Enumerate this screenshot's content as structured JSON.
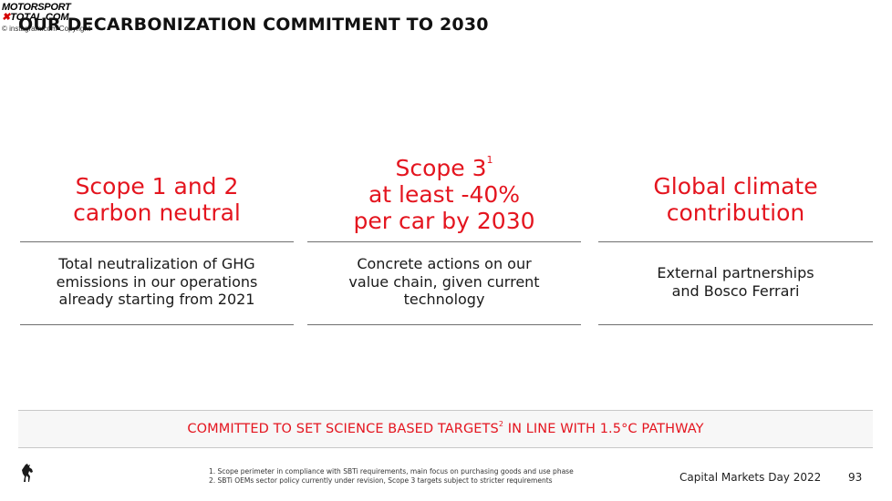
{
  "watermark": {
    "brand_line1": "MOTORSPORT",
    "brand_x": "✖",
    "brand_line2": "TOTAL.COM",
    "copyright": "© instagram.com Copyright"
  },
  "title": "OUR DECARBONIZATION COMMITMENT TO 2030",
  "columns": [
    {
      "heading_line1": "Scope 1 and 2",
      "heading_line2": "carbon neutral",
      "desc_line1": "Total neutralization of GHG",
      "desc_line2": "emissions in our operations",
      "desc_line3": "already starting from 2021"
    },
    {
      "heading_line0": "Scope 3",
      "heading_sup": "1",
      "heading_line1": "at least -40%",
      "heading_line2": "per car by 2030",
      "desc_line1": "Concrete actions on our",
      "desc_line2": "value chain, given current",
      "desc_line3": "technology"
    },
    {
      "heading_line1": "Global climate",
      "heading_line2": "contribution",
      "desc_line1": "External partnerships",
      "desc_line2": "and Bosco Ferrari"
    }
  ],
  "banner": {
    "text_before": "COMMITTED TO SET SCIENCE BASED TARGETS",
    "sup": "2",
    "text_after": " IN LINE WITH 1.5°C PATHWAY"
  },
  "footnotes": [
    "1. Scope perimeter in compliance with SBTi requirements, main focus on purchasing goods and use phase",
    "2. SBTi OEMs sector policy currently under revision, Scope 3 targets subject to stricter requirements"
  ],
  "footer": {
    "label": "Capital Markets Day 2022",
    "page": "93"
  },
  "colors": {
    "accent_red": "#e4151f",
    "text": "#1a1a1a",
    "rule": "#6f6f6f"
  },
  "icons": {
    "logo": "prancing-horse-icon"
  }
}
